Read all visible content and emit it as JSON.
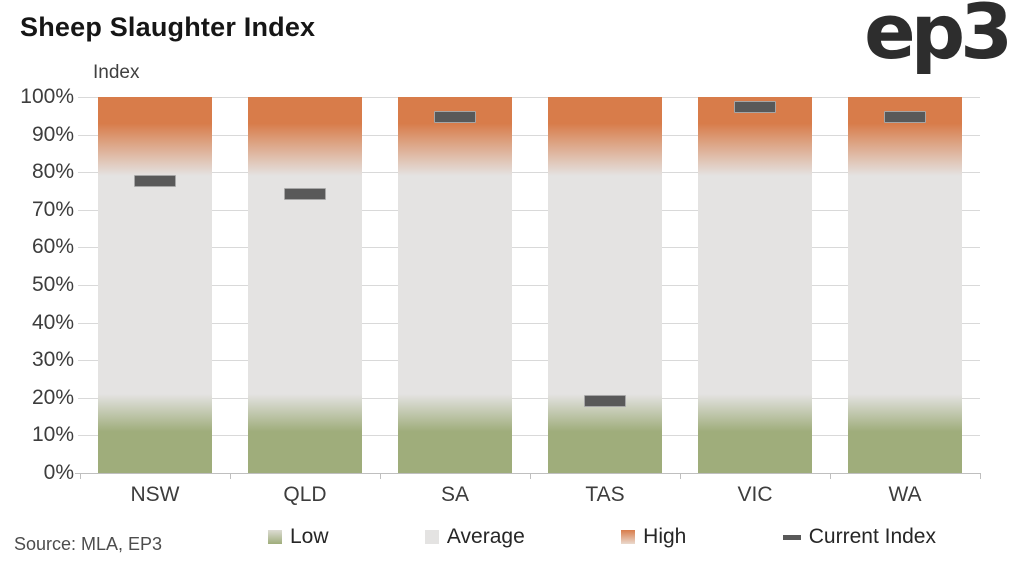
{
  "header": {
    "title": "Sheep Slaughter Index",
    "logo": "ep3"
  },
  "source": "Source: MLA, EP3",
  "colors": {
    "low": "#9fad7b",
    "average": "#e4e3e2",
    "high": "#d87c4a",
    "marker": "#595959",
    "marker_outline": "#a6a6a6",
    "gridline": "#d9d9d9",
    "axis_line": "#bfbfbf",
    "title_text": "#161616",
    "axis_text": "#3d3d3d"
  },
  "chart_data": {
    "type": "bar",
    "title": "Sheep Slaughter Index",
    "xlabel": "",
    "ylabel": "Index",
    "ylim": [
      0,
      100
    ],
    "ytick_step": 10,
    "ytick_suffix": "%",
    "grid": true,
    "legend_position": "bottom",
    "categories": [
      "NSW",
      "QLD",
      "SA",
      "TAS",
      "VIC",
      "WA"
    ],
    "bands_pct_from_bottom": {
      "low_solid_end": 11,
      "low_fade_end": 21,
      "average_end": 79,
      "high_solid_start": 93,
      "note": "Every bar spans 0-100%: Low (green) band at bottom ~0-20%, Average (grey) ~20-82%, High (orange) ~82-100%, drawn as gradients"
    },
    "series": [
      {
        "name": "Low",
        "role": "band",
        "values": [
          20,
          20,
          20,
          20,
          20,
          20
        ]
      },
      {
        "name": "Average",
        "role": "band",
        "values": [
          62,
          62,
          62,
          62,
          62,
          62
        ]
      },
      {
        "name": "High",
        "role": "band",
        "values": [
          18,
          18,
          18,
          18,
          18,
          18
        ]
      },
      {
        "name": "Current Index",
        "role": "dash-marker",
        "values": [
          77.5,
          74,
          94.5,
          19,
          97,
          94.5
        ]
      }
    ]
  },
  "legend": [
    {
      "label": "Low",
      "swatch": "low-gradient-square"
    },
    {
      "label": "Average",
      "swatch": "average-square"
    },
    {
      "label": "High",
      "swatch": "high-gradient-square"
    },
    {
      "label": "Current Index",
      "swatch": "dash"
    }
  ]
}
